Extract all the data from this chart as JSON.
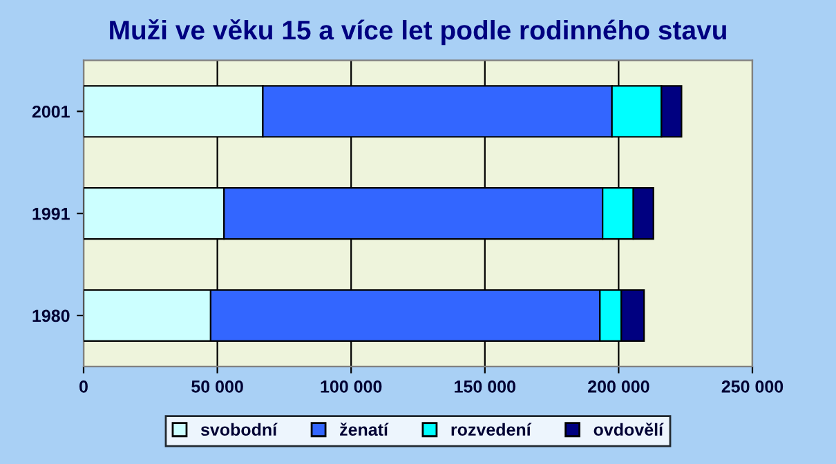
{
  "chart_data": {
    "type": "bar",
    "orientation": "horizontal",
    "stacked": true,
    "title": "Muži ve věku 15 a více let podle rodinného stavu",
    "categories": [
      "2001",
      "1991",
      "1980"
    ],
    "series": [
      {
        "name": "svobodní",
        "color": "#ccffff",
        "values": [
          67000,
          52500,
          47500
        ]
      },
      {
        "name": "ženatí",
        "color": "#3366ff",
        "values": [
          130500,
          141500,
          145500
        ]
      },
      {
        "name": "rozvedení",
        "color": "#00ffff",
        "values": [
          18500,
          11500,
          8000
        ]
      },
      {
        "name": "ovdovělí",
        "color": "#000080",
        "values": [
          7500,
          7500,
          8500
        ]
      }
    ],
    "xlim": [
      0,
      250000
    ],
    "xticks": [
      0,
      {
        "value": 50000,
        "label": "50 000"
      },
      {
        "value": 100000,
        "label": "100 000"
      },
      {
        "value": 150000,
        "label": "150 000"
      },
      {
        "value": 200000,
        "label": "200 000"
      },
      {
        "value": 250000,
        "label": "250 000"
      }
    ],
    "grid": "x",
    "legend": "bottom"
  }
}
